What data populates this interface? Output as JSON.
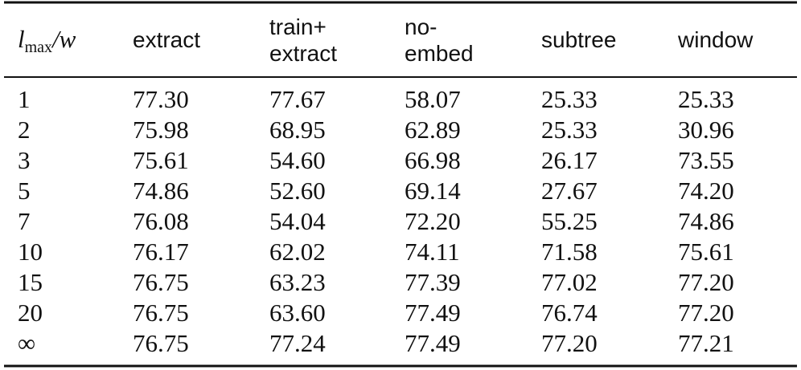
{
  "table": {
    "header": {
      "first": {
        "base": "l",
        "sub": "max",
        "rest": "/w"
      },
      "columns": [
        [
          "extract"
        ],
        [
          "train+",
          "extract"
        ],
        [
          "no-",
          "embed"
        ],
        [
          "subtree"
        ],
        [
          "window"
        ]
      ]
    },
    "rows": [
      [
        "1",
        "77.30",
        "77.67",
        "58.07",
        "25.33",
        "25.33"
      ],
      [
        "2",
        "75.98",
        "68.95",
        "62.89",
        "25.33",
        "30.96"
      ],
      [
        "3",
        "75.61",
        "54.60",
        "66.98",
        "26.17",
        "73.55"
      ],
      [
        "5",
        "74.86",
        "52.60",
        "69.14",
        "27.67",
        "74.20"
      ],
      [
        "7",
        "76.08",
        "54.04",
        "72.20",
        "55.25",
        "74.86"
      ],
      [
        "10",
        "76.17",
        "62.02",
        "74.11",
        "71.58",
        "75.61"
      ],
      [
        "15",
        "76.75",
        "63.23",
        "77.39",
        "77.02",
        "77.20"
      ],
      [
        "20",
        "76.75",
        "63.60",
        "77.49",
        "76.74",
        "77.20"
      ],
      [
        "∞",
        "76.75",
        "77.24",
        "77.49",
        "77.20",
        "77.21"
      ]
    ]
  }
}
